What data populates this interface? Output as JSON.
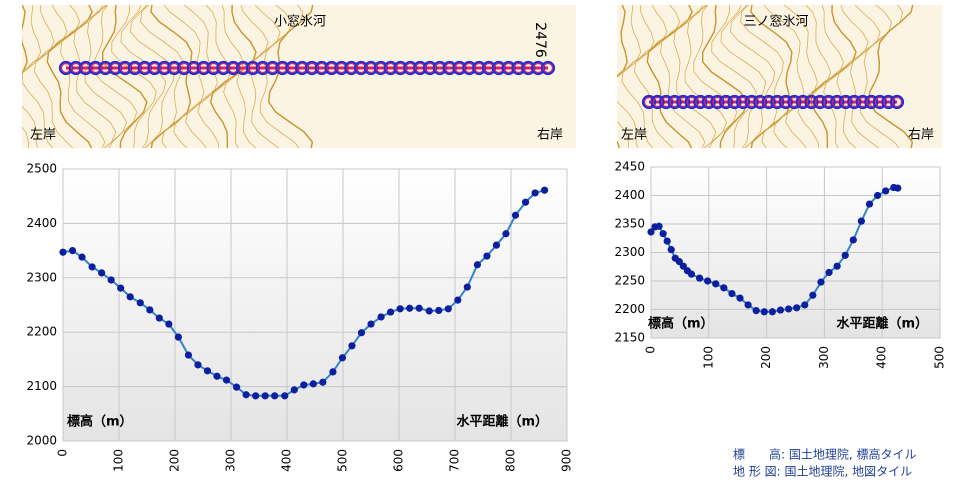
{
  "maps": [
    {
      "title": "小窓氷河",
      "left": "左岸",
      "right": "右岸",
      "elevation_mark": "2476"
    },
    {
      "title": "三ノ窓氷河",
      "left": "左岸",
      "right": "右岸"
    }
  ],
  "chart_data": [
    {
      "type": "line",
      "xlabel": "水平距離（m）",
      "ylabel": "標高（m）",
      "x": [
        0,
        17,
        34,
        52,
        69,
        86,
        103,
        120,
        138,
        155,
        172,
        189,
        206,
        224,
        241,
        258,
        275,
        292,
        310,
        327,
        344,
        361,
        378,
        396,
        413,
        430,
        447,
        464,
        482,
        499,
        516,
        533,
        550,
        568,
        585,
        602,
        619,
        636,
        654,
        671,
        688,
        705,
        722,
        740,
        757,
        774,
        791,
        808,
        826,
        843,
        860
      ],
      "values": [
        2347,
        2350,
        2338,
        2320,
        2309,
        2296,
        2281,
        2265,
        2254,
        2241,
        2226,
        2215,
        2191,
        2158,
        2140,
        2129,
        2119,
        2112,
        2099,
        2085,
        2083,
        2083,
        2083,
        2083,
        2094,
        2103,
        2105,
        2108,
        2127,
        2153,
        2175,
        2199,
        2215,
        2228,
        2237,
        2243,
        2244,
        2244,
        2239,
        2240,
        2243,
        2259,
        2283,
        2324,
        2340,
        2360,
        2381,
        2415,
        2439,
        2456,
        2461
      ],
      "color": "#2e86c8",
      "marker_color": "#0d1f9e",
      "xlim": [
        0,
        900
      ],
      "ylim": [
        2000,
        2500
      ],
      "xticks": [
        0,
        100,
        200,
        300,
        400,
        500,
        600,
        700,
        800,
        900
      ],
      "yticks": [
        2000,
        2100,
        2200,
        2300,
        2400,
        2500
      ],
      "grid": true
    },
    {
      "type": "line",
      "xlabel": "水平距離（m）",
      "ylabel": "標高（m）",
      "x": [
        0,
        7,
        14,
        21,
        28,
        35,
        42,
        49,
        56,
        63,
        70,
        84,
        98,
        112,
        126,
        140,
        154,
        168,
        182,
        196,
        210,
        224,
        238,
        252,
        266,
        280,
        294,
        308,
        322,
        336,
        350,
        364,
        378,
        392,
        406,
        420,
        427
      ],
      "values": [
        2336,
        2345,
        2346,
        2333,
        2320,
        2305,
        2290,
        2284,
        2276,
        2268,
        2262,
        2255,
        2250,
        2245,
        2238,
        2228,
        2220,
        2208,
        2198,
        2196,
        2196,
        2199,
        2201,
        2203,
        2208,
        2225,
        2248,
        2265,
        2276,
        2295,
        2322,
        2355,
        2385,
        2400,
        2408,
        2414,
        2413
      ],
      "color": "#2e86c8",
      "marker_color": "#0d1f9e",
      "xlim": [
        0,
        500
      ],
      "ylim": [
        2150,
        2450
      ],
      "xticks": [
        0,
        100,
        200,
        300,
        400,
        500
      ],
      "yticks": [
        2150,
        2200,
        2250,
        2300,
        2350,
        2400,
        2450
      ],
      "grid": true
    }
  ],
  "credits": [
    "標　　高: 国土地理院, 標高タイル",
    "地 形 図: 国土地理院, 地図タイル"
  ]
}
